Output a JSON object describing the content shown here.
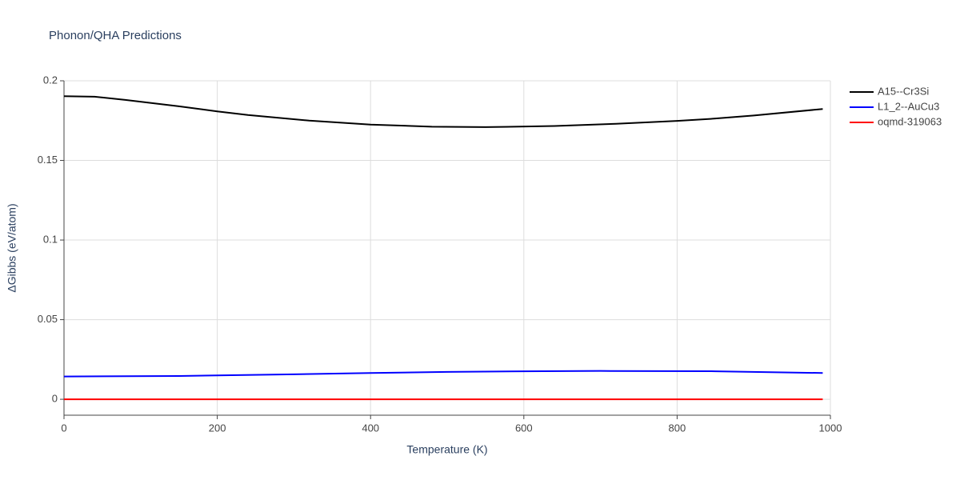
{
  "chart_data": {
    "type": "line",
    "title": "Phonon/QHA Predictions",
    "x_label": "Temperature (K)",
    "y_label": "ΔGibbs (eV/atom)",
    "xlim": [
      0,
      1000
    ],
    "xticks": [
      0,
      200,
      400,
      600,
      800,
      1000
    ],
    "ylim": [
      -0.01,
      0.2
    ],
    "yticks": [
      0,
      0.05,
      0.1,
      0.15,
      0.2
    ],
    "grid": true,
    "legend": "outside-right",
    "series": [
      {
        "name": "A15--Cr3Si",
        "color": "#000000",
        "x": [
          0,
          40,
          80,
          150,
          200,
          240,
          320,
          400,
          480,
          550,
          640,
          720,
          800,
          850,
          900,
          990
        ],
        "values": [
          0.1903,
          0.19,
          0.188,
          0.184,
          0.1808,
          0.1785,
          0.175,
          0.1725,
          0.1712,
          0.1709,
          0.1716,
          0.173,
          0.1748,
          0.1763,
          0.1782,
          0.1823
        ]
      },
      {
        "name": "L1_2--AuCu3",
        "color": "#0000ff",
        "x": [
          0,
          150,
          200,
          300,
          400,
          500,
          600,
          700,
          850,
          990
        ],
        "values": [
          0.0143,
          0.0146,
          0.015,
          0.0157,
          0.0165,
          0.0172,
          0.0176,
          0.0178,
          0.0176,
          0.0165
        ]
      },
      {
        "name": "oqmd-319063",
        "color": "#ff0000",
        "x": [
          0,
          990
        ],
        "values": [
          0,
          0
        ]
      }
    ]
  }
}
